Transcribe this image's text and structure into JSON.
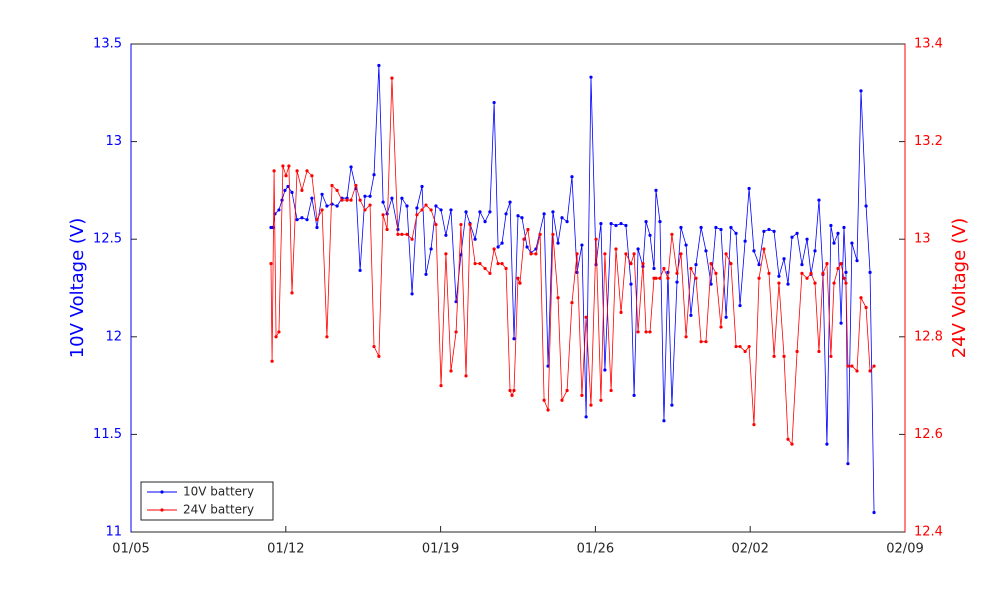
{
  "chart_data": {
    "type": "line",
    "xlabel": null,
    "ylabel": "10V Voltage (V)",
    "y2label": "24V Voltage (V)",
    "xlim": [
      5,
      40
    ],
    "xticks": [
      {
        "value": 5,
        "label": "01/05"
      },
      {
        "value": 12,
        "label": "01/12"
      },
      {
        "value": 19,
        "label": "01/19"
      },
      {
        "value": 26,
        "label": "01/26"
      },
      {
        "value": 33,
        "label": "02/02"
      },
      {
        "value": 40,
        "label": "02/09"
      }
    ],
    "ylim": [
      11,
      13.5
    ],
    "yticks": [
      11,
      11.5,
      12,
      12.5,
      13,
      13.5
    ],
    "y2lim": [
      12.4,
      13.4
    ],
    "y2ticks": [
      12.4,
      12.6,
      12.8,
      13,
      13.2,
      13.4
    ],
    "ycolor": "#0000ff",
    "y2color": "#ff0000",
    "grid": false,
    "legend": "lower left",
    "series": [
      {
        "name": "10V battery",
        "color": "#0000ff",
        "axis": "y",
        "x": [
          11.33,
          11.42,
          11.51,
          11.69,
          11.83,
          11.96,
          12.1,
          12.28,
          12.51,
          12.73,
          12.96,
          13.18,
          13.41,
          13.64,
          13.86,
          14.09,
          14.32,
          14.54,
          14.77,
          14.95,
          15.17,
          15.36,
          15.58,
          15.81,
          15.99,
          16.21,
          16.4,
          16.58,
          16.8,
          17.07,
          17.25,
          17.48,
          17.71,
          17.93,
          18.16,
          18.34,
          18.57,
          18.79,
          19.02,
          19.24,
          19.47,
          19.7,
          19.92,
          20.15,
          20.33,
          20.56,
          20.78,
          21.01,
          21.23,
          21.42,
          21.6,
          21.78,
          21.96,
          22.14,
          22.32,
          22.5,
          22.68,
          22.91,
          23.09,
          23.31,
          23.68,
          23.86,
          24.08,
          24.31,
          24.49,
          24.72,
          24.94,
          25.17,
          25.39,
          25.58,
          25.8,
          26.03,
          26.25,
          26.43,
          26.71,
          26.93,
          27.16,
          27.38,
          27.61,
          27.75,
          27.93,
          28.15,
          28.29,
          28.47,
          28.65,
          28.74,
          28.92,
          29.1,
          29.28,
          29.46,
          29.69,
          29.87,
          30.1,
          30.32,
          30.55,
          30.78,
          31.0,
          31.23,
          31.45,
          31.68,
          31.91,
          32.13,
          32.36,
          32.54,
          32.77,
          32.95,
          33.17,
          33.4,
          33.62,
          33.85,
          34.08,
          34.3,
          34.53,
          34.71,
          34.89,
          35.12,
          35.34,
          35.57,
          35.75,
          35.93,
          36.11,
          36.29,
          36.47,
          36.65,
          36.79,
          36.97,
          37.11,
          37.24,
          37.33,
          37.42,
          37.6,
          37.83,
          38.01,
          38.24,
          38.42,
          38.6
        ],
        "values": [
          12.56,
          12.56,
          12.63,
          12.65,
          12.7,
          12.75,
          12.77,
          12.74,
          12.6,
          12.61,
          12.6,
          12.71,
          12.56,
          12.73,
          12.67,
          12.68,
          12.67,
          12.71,
          12.71,
          12.87,
          12.76,
          12.34,
          12.72,
          12.72,
          12.83,
          13.39,
          12.69,
          12.63,
          12.71,
          12.55,
          12.71,
          12.67,
          12.22,
          12.66,
          12.77,
          12.32,
          12.45,
          12.67,
          12.65,
          12.52,
          12.65,
          12.18,
          12.42,
          12.64,
          12.58,
          12.5,
          12.64,
          12.59,
          12.64,
          13.2,
          12.46,
          12.48,
          12.63,
          12.69,
          11.99,
          12.62,
          12.61,
          12.46,
          12.43,
          12.45,
          12.63,
          11.85,
          12.64,
          12.48,
          12.61,
          12.59,
          12.82,
          12.33,
          12.47,
          11.59,
          13.33,
          12.37,
          12.58,
          11.83,
          12.58,
          12.57,
          12.58,
          12.57,
          12.27,
          11.7,
          12.45,
          12.36,
          12.59,
          12.52,
          12.35,
          12.75,
          12.59,
          11.57,
          12.33,
          11.65,
          12.28,
          12.56,
          12.47,
          12.11,
          12.37,
          12.56,
          12.44,
          12.27,
          12.56,
          12.55,
          12.1,
          12.56,
          12.53,
          12.16,
          12.49,
          12.76,
          12.44,
          12.37,
          12.54,
          12.55,
          12.54,
          12.31,
          12.4,
          12.27,
          12.51,
          12.53,
          12.37,
          12.5,
          12.32,
          12.44,
          12.7,
          12.32,
          11.45,
          12.57,
          12.48,
          12.53,
          12.07,
          12.56,
          12.33,
          11.35,
          12.48,
          12.39,
          13.26,
          12.67,
          12.33,
          11.1
        ]
      },
      {
        "name": "24V battery",
        "color": "#ff0000",
        "axis": "y2",
        "x": [
          11.33,
          11.38,
          11.47,
          11.56,
          11.69,
          11.87,
          12.01,
          12.14,
          12.28,
          12.51,
          12.73,
          12.96,
          13.18,
          13.41,
          13.64,
          13.86,
          14.09,
          14.32,
          14.54,
          14.77,
          14.95,
          15.17,
          15.36,
          15.58,
          15.81,
          15.99,
          16.21,
          16.4,
          16.58,
          16.8,
          17.07,
          17.25,
          17.48,
          17.71,
          17.93,
          18.16,
          18.34,
          18.57,
          18.79,
          19.02,
          19.24,
          19.47,
          19.7,
          19.92,
          20.15,
          20.33,
          20.56,
          20.78,
          21.01,
          21.23,
          21.42,
          21.6,
          21.78,
          21.96,
          22.14,
          22.23,
          22.32,
          22.5,
          22.59,
          22.77,
          22.95,
          23.09,
          23.31,
          23.5,
          23.68,
          23.86,
          24.08,
          24.31,
          24.49,
          24.72,
          24.94,
          25.17,
          25.39,
          25.58,
          25.8,
          26.03,
          26.25,
          26.43,
          26.71,
          26.93,
          27.16,
          27.38,
          27.61,
          27.75,
          27.93,
          28.15,
          28.29,
          28.47,
          28.65,
          28.74,
          28.92,
          29.1,
          29.28,
          29.46,
          29.69,
          29.87,
          30.1,
          30.32,
          30.55,
          30.78,
          31.0,
          31.23,
          31.45,
          31.68,
          31.91,
          32.13,
          32.36,
          32.54,
          32.77,
          32.95,
          33.17,
          33.4,
          33.62,
          33.85,
          34.08,
          34.3,
          34.53,
          34.71,
          34.89,
          35.12,
          35.34,
          35.57,
          35.75,
          35.93,
          36.11,
          36.29,
          36.47,
          36.65,
          36.79,
          36.97,
          37.11,
          37.24,
          37.33,
          37.42,
          37.6,
          37.83,
          38.01,
          38.24,
          38.42,
          38.6
        ],
        "values": [
          12.95,
          12.75,
          13.14,
          12.8,
          12.81,
          13.15,
          13.13,
          13.15,
          12.89,
          13.14,
          13.1,
          13.14,
          13.13,
          13.04,
          13.06,
          12.8,
          13.11,
          13.1,
          13.08,
          13.08,
          13.08,
          13.11,
          13.08,
          13.06,
          13.07,
          12.78,
          12.76,
          13.05,
          13.02,
          13.33,
          13.01,
          13.01,
          13.01,
          13.0,
          13.05,
          13.06,
          13.07,
          13.06,
          13.03,
          12.7,
          12.97,
          12.73,
          12.81,
          13.03,
          12.72,
          13.03,
          12.95,
          12.95,
          12.94,
          12.93,
          12.98,
          12.95,
          12.95,
          12.94,
          12.69,
          12.68,
          12.69,
          12.92,
          12.91,
          13.0,
          13.02,
          12.97,
          12.97,
          13.01,
          12.67,
          12.65,
          13.01,
          12.88,
          12.67,
          12.69,
          12.87,
          12.97,
          12.68,
          12.84,
          12.66,
          13.0,
          12.67,
          12.97,
          12.69,
          12.98,
          12.85,
          12.97,
          12.95,
          12.97,
          12.81,
          12.95,
          12.81,
          12.81,
          12.92,
          12.92,
          12.92,
          12.94,
          12.92,
          13.01,
          12.93,
          12.97,
          12.8,
          12.94,
          12.92,
          12.79,
          12.79,
          12.95,
          12.93,
          12.82,
          12.97,
          12.95,
          12.78,
          12.78,
          12.77,
          12.78,
          12.62,
          12.92,
          12.98,
          12.93,
          12.76,
          12.91,
          12.76,
          12.59,
          12.58,
          12.77,
          12.93,
          12.92,
          12.93,
          12.91,
          12.77,
          12.93,
          12.95,
          12.76,
          12.91,
          12.94,
          12.95,
          12.92,
          12.91,
          12.74,
          12.74,
          12.73,
          12.88,
          12.86,
          12.73,
          12.74
        ]
      }
    ]
  }
}
